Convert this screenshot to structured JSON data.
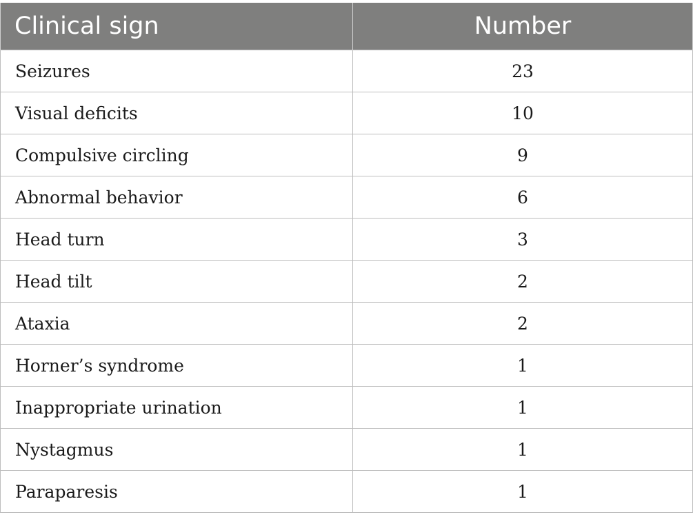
{
  "table": {
    "headers": [
      "Clinical sign",
      "Number"
    ],
    "rows": [
      {
        "sign": "Seizures",
        "number": "23"
      },
      {
        "sign": "Visual deficits",
        "number": "10"
      },
      {
        "sign": "Compulsive circling",
        "number": "9"
      },
      {
        "sign": "Abnormal behavior",
        "number": "6"
      },
      {
        "sign": "Head turn",
        "number": "3"
      },
      {
        "sign": "Head tilt",
        "number": "2"
      },
      {
        "sign": "Ataxia",
        "number": "2"
      },
      {
        "sign": "Horner’s syndrome",
        "number": "1"
      },
      {
        "sign": "Inappropriate urination",
        "number": "1"
      },
      {
        "sign": "Nystagmus",
        "number": "1"
      },
      {
        "sign": "Paraparesis",
        "number": "1"
      }
    ]
  },
  "colors": {
    "header_bg": "#7f7f7e",
    "header_text": "#ffffff",
    "grid_line": "#bdbdbd"
  }
}
